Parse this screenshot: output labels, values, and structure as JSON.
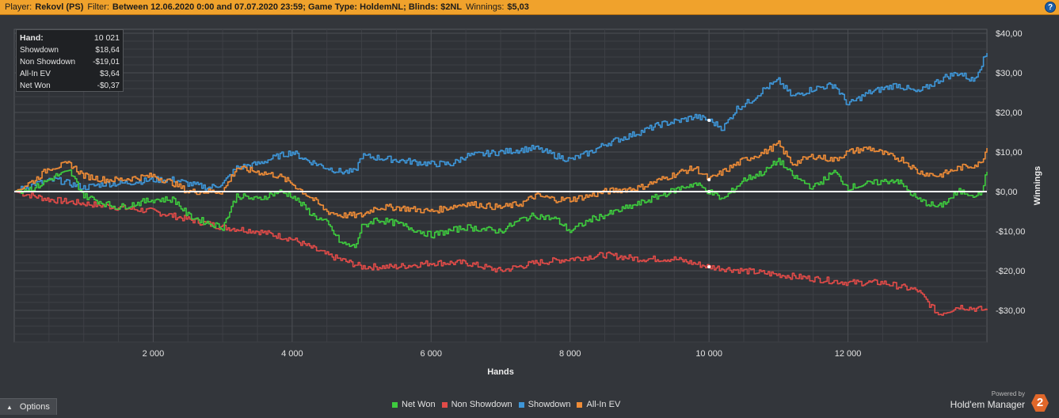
{
  "header": {
    "player_label": "Player:",
    "player": "Rekovl (PS)",
    "filter_label": "Filter:",
    "filter": "Between 12.06.2020 0:00 and 07.07.2020 23:59; Game Type: HoldemNL; Blinds: $2NL",
    "winnings_label": "Winnings:",
    "winnings": "$5,03",
    "help": "?"
  },
  "stats": [
    {
      "label": "Hand:",
      "value": "10 021"
    },
    {
      "label": "Showdown",
      "value": "$18,64"
    },
    {
      "label": "Non Showdown",
      "value": "-$19,01"
    },
    {
      "label": "All-In EV",
      "value": "$3,64"
    },
    {
      "label": "Net Won",
      "value": "-$0,37"
    }
  ],
  "options_label": "Options",
  "brand": {
    "powered": "Powered by",
    "name": "Hold'em Manager",
    "logo": "2"
  },
  "colors": {
    "net_won": "#3ecb3e",
    "non_showdown": "#e24b48",
    "showdown": "#3e96d8",
    "all_in_ev": "#ef8c37",
    "background": "#33363b",
    "header": "#f0a22c"
  },
  "chart_data": {
    "type": "line",
    "xlabel": "Hands",
    "ylabel": "Winnings",
    "xlim": [
      0,
      14000
    ],
    "ylim": [
      -38,
      41
    ],
    "x_ticks": [
      2000,
      4000,
      6000,
      8000,
      10000,
      12000
    ],
    "x_tick_labels": [
      "2 000",
      "4 000",
      "6 000",
      "8 000",
      "10 000",
      "12 000"
    ],
    "y_ticks": [
      40,
      30,
      20,
      10,
      0,
      -10,
      -20,
      -30
    ],
    "y_tick_labels": [
      "$40,00",
      "$30,00",
      "$20,00",
      "$10,00",
      "$0,00",
      "-$10,00",
      "-$20,00",
      "-$30,00"
    ],
    "grid": true,
    "legend": "bottom-center",
    "zero_line": 0,
    "series": [
      {
        "name": "Net Won",
        "color": "#3ecb3e",
        "x": [
          0,
          300,
          600,
          800,
          1000,
          1300,
          1500,
          2000,
          2300,
          2500,
          2800,
          3000,
          3200,
          3500,
          3800,
          4000,
          4300,
          4500,
          4700,
          4900,
          5000,
          5200,
          5500,
          6000,
          6500,
          7000,
          7300,
          7500,
          7800,
          8000,
          8300,
          8500,
          9000,
          9300,
          9600,
          9800,
          10000,
          10200,
          10500,
          10800,
          11000,
          11200,
          11500,
          11800,
          12000,
          12300,
          12700,
          13000,
          13300,
          13600,
          13900,
          14000
        ],
        "y": [
          0,
          1,
          4,
          5,
          -1,
          -3,
          -4,
          -2,
          -2,
          -6,
          -8,
          -9,
          -1,
          -2,
          0,
          -1,
          -6,
          -8,
          -13,
          -14,
          -9,
          -7,
          -8,
          -11,
          -9,
          -10,
          -7,
          -6,
          -7,
          -10,
          -7,
          -6,
          -3,
          -1,
          1,
          2,
          0,
          -2,
          3,
          5,
          8,
          4,
          1,
          5,
          1,
          2,
          3,
          -2,
          -4,
          0,
          -1,
          5
        ]
      },
      {
        "name": "Non Showdown",
        "color": "#e24b48",
        "x": [
          0,
          500,
          1000,
          1500,
          2000,
          2500,
          3000,
          3500,
          4000,
          4500,
          5000,
          5500,
          6000,
          6500,
          7000,
          7500,
          8000,
          8500,
          9000,
          9500,
          10000,
          10500,
          11000,
          11500,
          12000,
          12500,
          13000,
          13300,
          13600,
          14000
        ],
        "y": [
          0,
          -2,
          -3,
          -4,
          -5,
          -7,
          -9,
          -10,
          -12,
          -16,
          -19,
          -19,
          -18,
          -18,
          -20,
          -18,
          -17,
          -16,
          -17,
          -17,
          -19,
          -20,
          -21,
          -22,
          -23,
          -23,
          -25,
          -31,
          -29,
          -30
        ]
      },
      {
        "name": "Showdown",
        "color": "#3e96d8",
        "x": [
          0,
          300,
          600,
          800,
          1000,
          1300,
          1500,
          2000,
          2300,
          2500,
          2800,
          3000,
          3200,
          3500,
          3800,
          4000,
          4200,
          4500,
          4700,
          4900,
          5000,
          5500,
          6000,
          6300,
          6500,
          7000,
          7500,
          7800,
          8000,
          8300,
          8500,
          9000,
          9300,
          9600,
          9800,
          10000,
          10200,
          10400,
          10600,
          10800,
          11000,
          11200,
          11500,
          11800,
          12000,
          12300,
          12700,
          13000,
          13400,
          13600,
          13800,
          14000
        ],
        "y": [
          0,
          2,
          3,
          2,
          1,
          2,
          2,
          3,
          3,
          2,
          1,
          2,
          6,
          7,
          9,
          10,
          8,
          6,
          5,
          5,
          9,
          8,
          7,
          7,
          9,
          10,
          11,
          9,
          8,
          10,
          12,
          15,
          17,
          18,
          19,
          18,
          16,
          21,
          23,
          26,
          28,
          24,
          26,
          27,
          22,
          25,
          27,
          25,
          29,
          30,
          28,
          35
        ]
      },
      {
        "name": "All-In EV",
        "color": "#ef8c37",
        "x": [
          0,
          300,
          500,
          800,
          1000,
          1300,
          1500,
          2000,
          2300,
          2500,
          2800,
          3000,
          3200,
          3500,
          3800,
          4000,
          4300,
          4500,
          4700,
          5000,
          5200,
          5500,
          6000,
          6500,
          7000,
          7300,
          7500,
          7800,
          8000,
          8300,
          8500,
          9000,
          9300,
          9600,
          9800,
          10000,
          10200,
          10500,
          10800,
          11000,
          11200,
          11500,
          11800,
          12000,
          12300,
          12600,
          12800,
          13000,
          13300,
          13600,
          13900,
          14000
        ],
        "y": [
          0,
          3,
          6,
          7,
          4,
          3,
          3,
          4,
          2,
          0,
          0,
          0,
          6,
          5,
          4,
          2,
          -2,
          -5,
          -6,
          -6,
          -4,
          -4,
          -5,
          -3,
          -4,
          -3,
          -1,
          -2,
          -2,
          -1,
          0,
          1,
          3,
          5,
          6,
          3,
          5,
          8,
          10,
          12,
          7,
          9,
          8,
          10,
          11,
          9,
          8,
          5,
          4,
          6,
          7,
          11
        ]
      }
    ]
  }
}
